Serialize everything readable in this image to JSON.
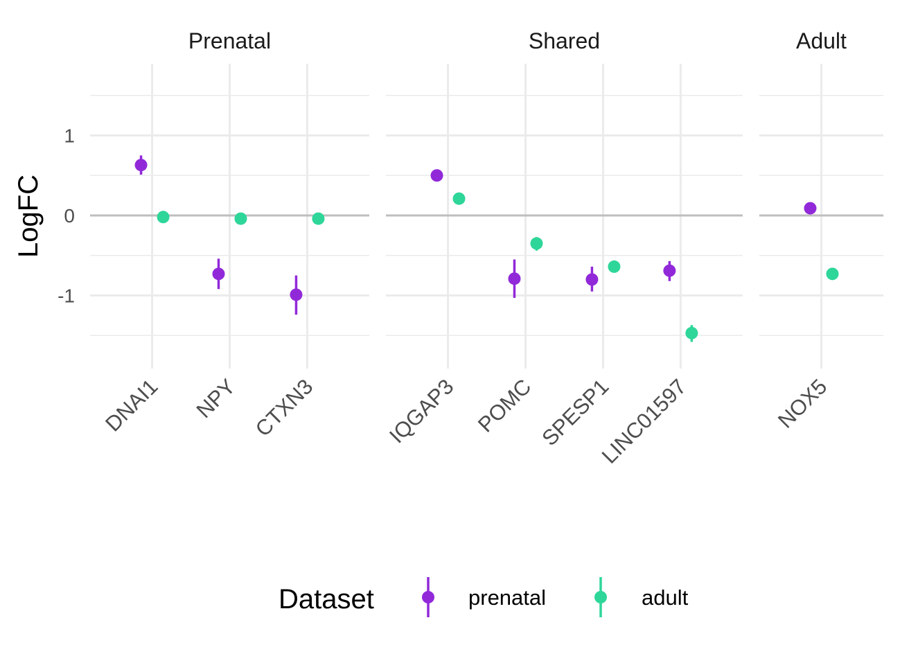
{
  "chart_data": {
    "type": "scatter",
    "ylabel": "LogFC",
    "ylim": [
      -1.9,
      1.85
    ],
    "yticks": [
      -1,
      0,
      1
    ],
    "yticks_minor": [
      -1.5,
      -0.5,
      0.5,
      1.5
    ],
    "reference_line_y": 0,
    "colors": {
      "prenatal": "#9129D9",
      "adult": "#2ED699"
    },
    "legend": {
      "title": "Dataset",
      "position": "bottom",
      "entries": [
        {
          "key": "prenatal",
          "label": "prenatal"
        },
        {
          "key": "adult",
          "label": "adult"
        }
      ]
    },
    "facets": [
      {
        "title": "Prenatal",
        "categories": [
          "DNAI1",
          "NPY",
          "CTXN3"
        ],
        "points": [
          {
            "category": "DNAI1",
            "series": "prenatal",
            "y": 0.63,
            "lo": 0.51,
            "hi": 0.75
          },
          {
            "category": "DNAI1",
            "series": "adult",
            "y": -0.02,
            "lo": -0.06,
            "hi": 0.02
          },
          {
            "category": "NPY",
            "series": "prenatal",
            "y": -0.73,
            "lo": -0.92,
            "hi": -0.54
          },
          {
            "category": "NPY",
            "series": "adult",
            "y": -0.04,
            "lo": -0.08,
            "hi": 0.0
          },
          {
            "category": "CTXN3",
            "series": "prenatal",
            "y": -0.99,
            "lo": -1.24,
            "hi": -0.75
          },
          {
            "category": "CTXN3",
            "series": "adult",
            "y": -0.04,
            "lo": -0.08,
            "hi": 0.0
          }
        ]
      },
      {
        "title": "Shared",
        "categories": [
          "IQGAP3",
          "POMC",
          "SPESP1",
          "LINC01597"
        ],
        "points": [
          {
            "category": "IQGAP3",
            "series": "prenatal",
            "y": 0.5,
            "lo": 0.46,
            "hi": 0.54
          },
          {
            "category": "IQGAP3",
            "series": "adult",
            "y": 0.21,
            "lo": 0.17,
            "hi": 0.25
          },
          {
            "category": "POMC",
            "series": "prenatal",
            "y": -0.79,
            "lo": -1.03,
            "hi": -0.55
          },
          {
            "category": "POMC",
            "series": "adult",
            "y": -0.35,
            "lo": -0.44,
            "hi": -0.27
          },
          {
            "category": "SPESP1",
            "series": "prenatal",
            "y": -0.8,
            "lo": -0.95,
            "hi": -0.64
          },
          {
            "category": "SPESP1",
            "series": "adult",
            "y": -0.64,
            "lo": -0.68,
            "hi": -0.6
          },
          {
            "category": "LINC01597",
            "series": "prenatal",
            "y": -0.69,
            "lo": -0.82,
            "hi": -0.57
          },
          {
            "category": "LINC01597",
            "series": "adult",
            "y": -1.47,
            "lo": -1.58,
            "hi": -1.37
          }
        ]
      },
      {
        "title": "Adult",
        "categories": [
          "NOX5"
        ],
        "points": [
          {
            "category": "NOX5",
            "series": "prenatal",
            "y": 0.09,
            "lo": 0.05,
            "hi": 0.13
          },
          {
            "category": "NOX5",
            "series": "adult",
            "y": -0.73,
            "lo": -0.77,
            "hi": -0.69
          }
        ]
      }
    ]
  }
}
